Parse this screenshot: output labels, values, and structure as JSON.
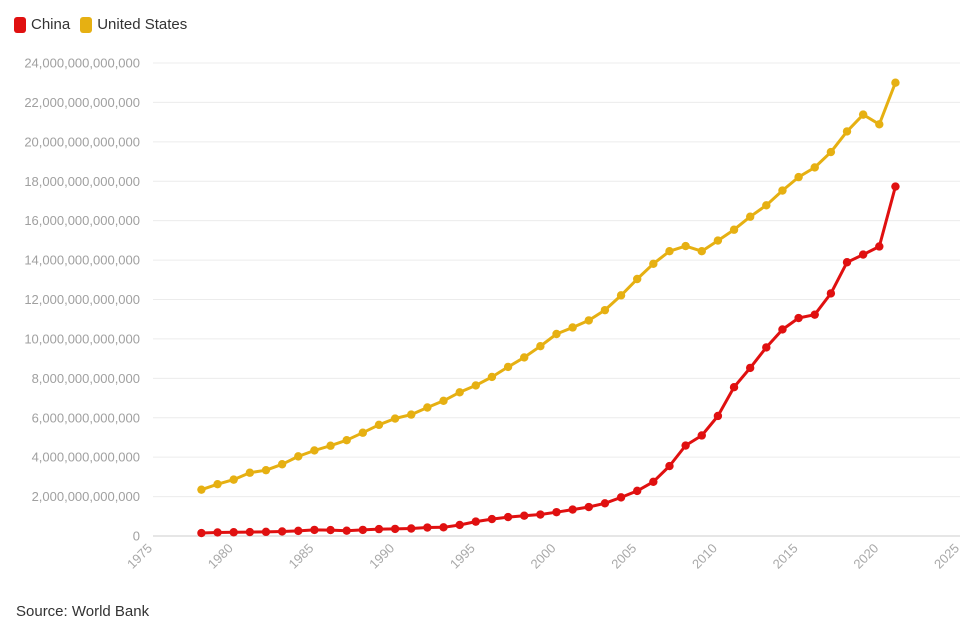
{
  "chart_data": {
    "type": "line",
    "title": "",
    "xlabel": "",
    "ylabel": "",
    "xlim": [
      1975,
      2025
    ],
    "ylim": [
      0,
      24000000000000
    ],
    "x_ticks": [
      1975,
      1980,
      1985,
      1990,
      1995,
      2000,
      2005,
      2010,
      2015,
      2020,
      2025
    ],
    "x_tick_labels": [
      "1975",
      "1980",
      "1985",
      "1990",
      "1995",
      "2000",
      "2005",
      "2010",
      "2015",
      "2020",
      "2025"
    ],
    "y_ticks": [
      0,
      2000000000000,
      4000000000000,
      6000000000000,
      8000000000000,
      10000000000000,
      12000000000000,
      14000000000000,
      16000000000000,
      18000000000000,
      20000000000000,
      22000000000000,
      24000000000000
    ],
    "y_tick_labels": [
      "0",
      "2,000,000,000,000",
      "4,000,000,000,000",
      "6,000,000,000,000",
      "8,000,000,000,000",
      "10,000,000,000,000",
      "12,000,000,000,000",
      "14,000,000,000,000",
      "16,000,000,000,000",
      "18,000,000,000,000",
      "20,000,000,000,000",
      "22,000,000,000,000",
      "24,000,000,000,000"
    ],
    "grid": true,
    "legend_position": "top-left",
    "x": [
      1978,
      1979,
      1980,
      1981,
      1982,
      1983,
      1984,
      1985,
      1986,
      1987,
      1988,
      1989,
      1990,
      1991,
      1992,
      1993,
      1994,
      1995,
      1996,
      1997,
      1998,
      1999,
      2000,
      2001,
      2002,
      2003,
      2004,
      2005,
      2006,
      2007,
      2008,
      2009,
      2010,
      2011,
      2012,
      2013,
      2014,
      2015,
      2016,
      2017,
      2018,
      2019,
      2020,
      2021
    ],
    "series": [
      {
        "name": "China",
        "color": "#e01010",
        "values": [
          150000000000,
          180000000000,
          190000000000,
          200000000000,
          210000000000,
          230000000000,
          260000000000,
          310000000000,
          300000000000,
          270000000000,
          310000000000,
          350000000000,
          360000000000,
          380000000000,
          430000000000,
          440000000000,
          560000000000,
          730000000000,
          860000000000,
          960000000000,
          1030000000000,
          1090000000000,
          1210000000000,
          1340000000000,
          1470000000000,
          1660000000000,
          1960000000000,
          2290000000000,
          2750000000000,
          3550000000000,
          4590000000000,
          5100000000000,
          6090000000000,
          7550000000000,
          8530000000000,
          9570000000000,
          10480000000000,
          11060000000000,
          11230000000000,
          12310000000000,
          13890000000000,
          14280000000000,
          14690000000000,
          17730000000000
        ]
      },
      {
        "name": "United States",
        "color": "#e6b012",
        "values": [
          2350000000000,
          2630000000000,
          2860000000000,
          3210000000000,
          3340000000000,
          3640000000000,
          4040000000000,
          4340000000000,
          4580000000000,
          4860000000000,
          5240000000000,
          5640000000000,
          5960000000000,
          6160000000000,
          6520000000000,
          6860000000000,
          7290000000000,
          7640000000000,
          8070000000000,
          8580000000000,
          9060000000000,
          9630000000000,
          10250000000000,
          10580000000000,
          10940000000000,
          11460000000000,
          12210000000000,
          13040000000000,
          13810000000000,
          14450000000000,
          14710000000000,
          14450000000000,
          14990000000000,
          15540000000000,
          16200000000000,
          16780000000000,
          17530000000000,
          18210000000000,
          18700000000000,
          19480000000000,
          20530000000000,
          21380000000000,
          20890000000000,
          23000000000000
        ]
      }
    ]
  },
  "legend": {
    "china": "China",
    "us": "United States"
  },
  "source": "Source: World Bank"
}
